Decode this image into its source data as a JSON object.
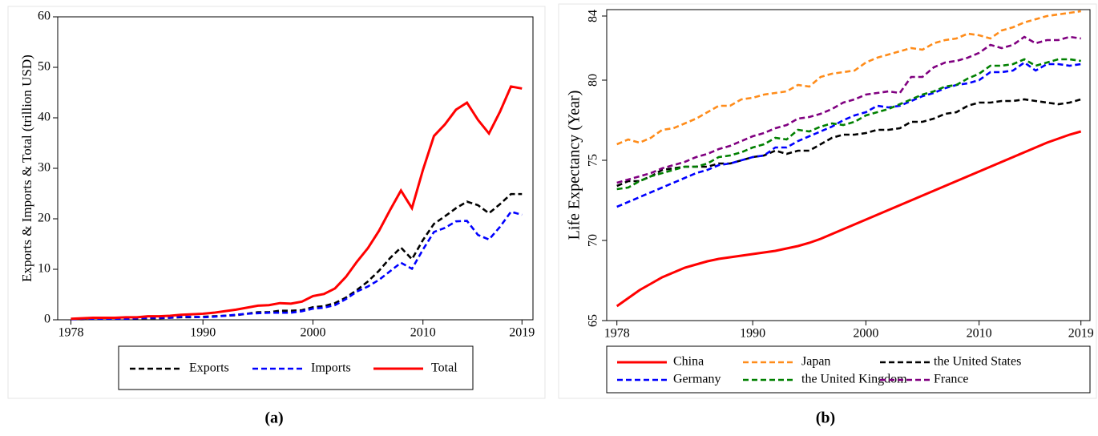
{
  "chart_data": [
    {
      "type": "line",
      "caption": "(a)",
      "ylabel": "Exports & Imports & Total (trillion USD)",
      "x": [
        1978,
        1979,
        1980,
        1981,
        1982,
        1983,
        1984,
        1985,
        1986,
        1987,
        1988,
        1989,
        1990,
        1991,
        1992,
        1993,
        1994,
        1995,
        1996,
        1997,
        1998,
        1999,
        2000,
        2001,
        2002,
        2003,
        2004,
        2005,
        2006,
        2007,
        2008,
        2009,
        2010,
        2011,
        2012,
        2013,
        2014,
        2015,
        2016,
        2017,
        2018,
        2019
      ],
      "xlim": [
        1976.8,
        2020
      ],
      "xticks": [
        1978,
        1990,
        2000,
        2010,
        2019
      ],
      "ylim": [
        0,
        60
      ],
      "yticks": [
        0,
        10,
        20,
        30,
        40,
        50,
        60
      ],
      "legend": "bottom",
      "series": [
        {
          "name": "Exports",
          "color": "#000000",
          "style": "dashed",
          "values": [
            0.1,
            0.1,
            0.2,
            0.2,
            0.2,
            0.2,
            0.3,
            0.3,
            0.3,
            0.4,
            0.5,
            0.5,
            0.6,
            0.7,
            0.8,
            0.9,
            1.2,
            1.5,
            1.5,
            1.8,
            1.8,
            1.9,
            2.5,
            2.7,
            3.3,
            4.4,
            5.9,
            7.6,
            9.7,
            12.2,
            14.3,
            12.0,
            15.8,
            19.0,
            20.5,
            22.1,
            23.4,
            22.7,
            21.1,
            22.9,
            24.9,
            24.9
          ]
        },
        {
          "name": "Imports",
          "color": "#0000ff",
          "style": "dashed",
          "values": [
            0.1,
            0.2,
            0.2,
            0.2,
            0.2,
            0.2,
            0.3,
            0.4,
            0.4,
            0.4,
            0.6,
            0.6,
            0.5,
            0.6,
            0.8,
            1.0,
            1.2,
            1.3,
            1.4,
            1.4,
            1.4,
            1.7,
            2.2,
            2.4,
            2.9,
            4.1,
            5.6,
            6.6,
            7.9,
            9.6,
            11.3,
            10.1,
            13.9,
            17.4,
            18.2,
            19.5,
            19.6,
            16.8,
            15.9,
            18.4,
            21.4,
            20.8
          ]
        },
        {
          "name": "Total",
          "color": "#ff0000",
          "style": "solid",
          "values": [
            0.2,
            0.3,
            0.4,
            0.4,
            0.4,
            0.5,
            0.5,
            0.7,
            0.7,
            0.8,
            1.0,
            1.1,
            1.2,
            1.4,
            1.7,
            2.0,
            2.4,
            2.8,
            2.9,
            3.3,
            3.2,
            3.6,
            4.7,
            5.1,
            6.2,
            8.5,
            11.5,
            14.2,
            17.6,
            21.7,
            25.6,
            22.1,
            29.7,
            36.4,
            38.7,
            41.6,
            43.0,
            39.6,
            36.9,
            41.2,
            46.2,
            45.8
          ]
        }
      ]
    },
    {
      "type": "line",
      "caption": "(b)",
      "ylabel": "Life Expectancy (Year)",
      "x": [
        1978,
        1979,
        1980,
        1981,
        1982,
        1983,
        1984,
        1985,
        1986,
        1987,
        1988,
        1989,
        1990,
        1991,
        1992,
        1993,
        1994,
        1995,
        1996,
        1997,
        1998,
        1999,
        2000,
        2001,
        2002,
        2003,
        2004,
        2005,
        2006,
        2007,
        2008,
        2009,
        2010,
        2011,
        2012,
        2013,
        2014,
        2015,
        2016,
        2017,
        2018,
        2019
      ],
      "xlim": [
        1977.1,
        2019.8
      ],
      "xticks": [
        1978,
        1990,
        2000,
        2010,
        2019
      ],
      "ylim": [
        65,
        84.4
      ],
      "yticks": [
        65,
        70,
        75,
        80,
        84
      ],
      "legend": "bottom",
      "series": [
        {
          "name": "China",
          "color": "#ff0000",
          "style": "solid",
          "values": [
            65.9,
            66.4,
            66.9,
            67.3,
            67.7,
            68.0,
            68.3,
            68.5,
            68.7,
            68.85,
            68.95,
            69.05,
            69.15,
            69.25,
            69.35,
            69.5,
            69.65,
            69.85,
            70.1,
            70.4,
            70.7,
            71.0,
            71.3,
            71.6,
            71.9,
            72.2,
            72.5,
            72.8,
            73.1,
            73.4,
            73.7,
            74.0,
            74.3,
            74.6,
            74.9,
            75.2,
            75.5,
            75.8,
            76.1,
            76.35,
            76.6,
            76.8
          ]
        },
        {
          "name": "Japan",
          "color": "#ff8c1a",
          "style": "dashed",
          "values": [
            76.0,
            76.3,
            76.1,
            76.4,
            76.9,
            77.0,
            77.3,
            77.6,
            78.0,
            78.4,
            78.4,
            78.8,
            78.9,
            79.1,
            79.2,
            79.3,
            79.7,
            79.6,
            80.2,
            80.4,
            80.5,
            80.6,
            81.1,
            81.4,
            81.6,
            81.8,
            82.0,
            81.9,
            82.3,
            82.5,
            82.6,
            82.9,
            82.8,
            82.6,
            83.1,
            83.3,
            83.6,
            83.8,
            84.0,
            84.1,
            84.2,
            84.3
          ]
        },
        {
          "name": "the United States",
          "color": "#000000",
          "style": "dashed",
          "values": [
            73.4,
            73.7,
            73.7,
            74.0,
            74.4,
            74.5,
            74.6,
            74.6,
            74.6,
            74.8,
            74.8,
            75.0,
            75.2,
            75.3,
            75.6,
            75.4,
            75.6,
            75.6,
            76.0,
            76.4,
            76.6,
            76.6,
            76.7,
            76.9,
            76.9,
            77.0,
            77.4,
            77.4,
            77.6,
            77.9,
            78.0,
            78.4,
            78.6,
            78.6,
            78.7,
            78.7,
            78.8,
            78.7,
            78.6,
            78.5,
            78.6,
            78.8
          ]
        },
        {
          "name": "Germany",
          "color": "#0000ff",
          "style": "dashed",
          "values": [
            72.1,
            72.4,
            72.7,
            73.0,
            73.3,
            73.6,
            73.9,
            74.2,
            74.4,
            74.7,
            74.8,
            75.0,
            75.2,
            75.3,
            75.8,
            75.8,
            76.2,
            76.5,
            76.8,
            77.1,
            77.5,
            77.8,
            78.0,
            78.4,
            78.3,
            78.4,
            78.7,
            79.0,
            79.2,
            79.5,
            79.7,
            79.8,
            80.0,
            80.5,
            80.5,
            80.6,
            81.1,
            80.6,
            81.0,
            81.0,
            80.9,
            81.0
          ]
        },
        {
          "name": "the United Kingdom",
          "color": "#008000",
          "style": "dashed",
          "values": [
            73.2,
            73.3,
            73.7,
            74.0,
            74.2,
            74.4,
            74.6,
            74.6,
            74.8,
            75.2,
            75.3,
            75.5,
            75.8,
            76.0,
            76.4,
            76.3,
            76.9,
            76.8,
            77.1,
            77.3,
            77.2,
            77.4,
            77.8,
            78.0,
            78.2,
            78.5,
            78.8,
            79.1,
            79.3,
            79.6,
            79.7,
            80.1,
            80.4,
            80.9,
            80.9,
            81.0,
            81.3,
            80.9,
            81.1,
            81.3,
            81.3,
            81.2
          ]
        },
        {
          "name": "France",
          "color": "#800080",
          "style": "dashed",
          "values": [
            73.6,
            73.8,
            74.0,
            74.2,
            74.5,
            74.7,
            74.9,
            75.2,
            75.4,
            75.7,
            75.9,
            76.2,
            76.5,
            76.7,
            77.0,
            77.2,
            77.6,
            77.7,
            77.9,
            78.2,
            78.6,
            78.8,
            79.1,
            79.2,
            79.3,
            79.2,
            80.2,
            80.2,
            80.8,
            81.1,
            81.2,
            81.4,
            81.7,
            82.2,
            82.0,
            82.2,
            82.7,
            82.3,
            82.5,
            82.5,
            82.7,
            82.6
          ]
        }
      ]
    }
  ]
}
